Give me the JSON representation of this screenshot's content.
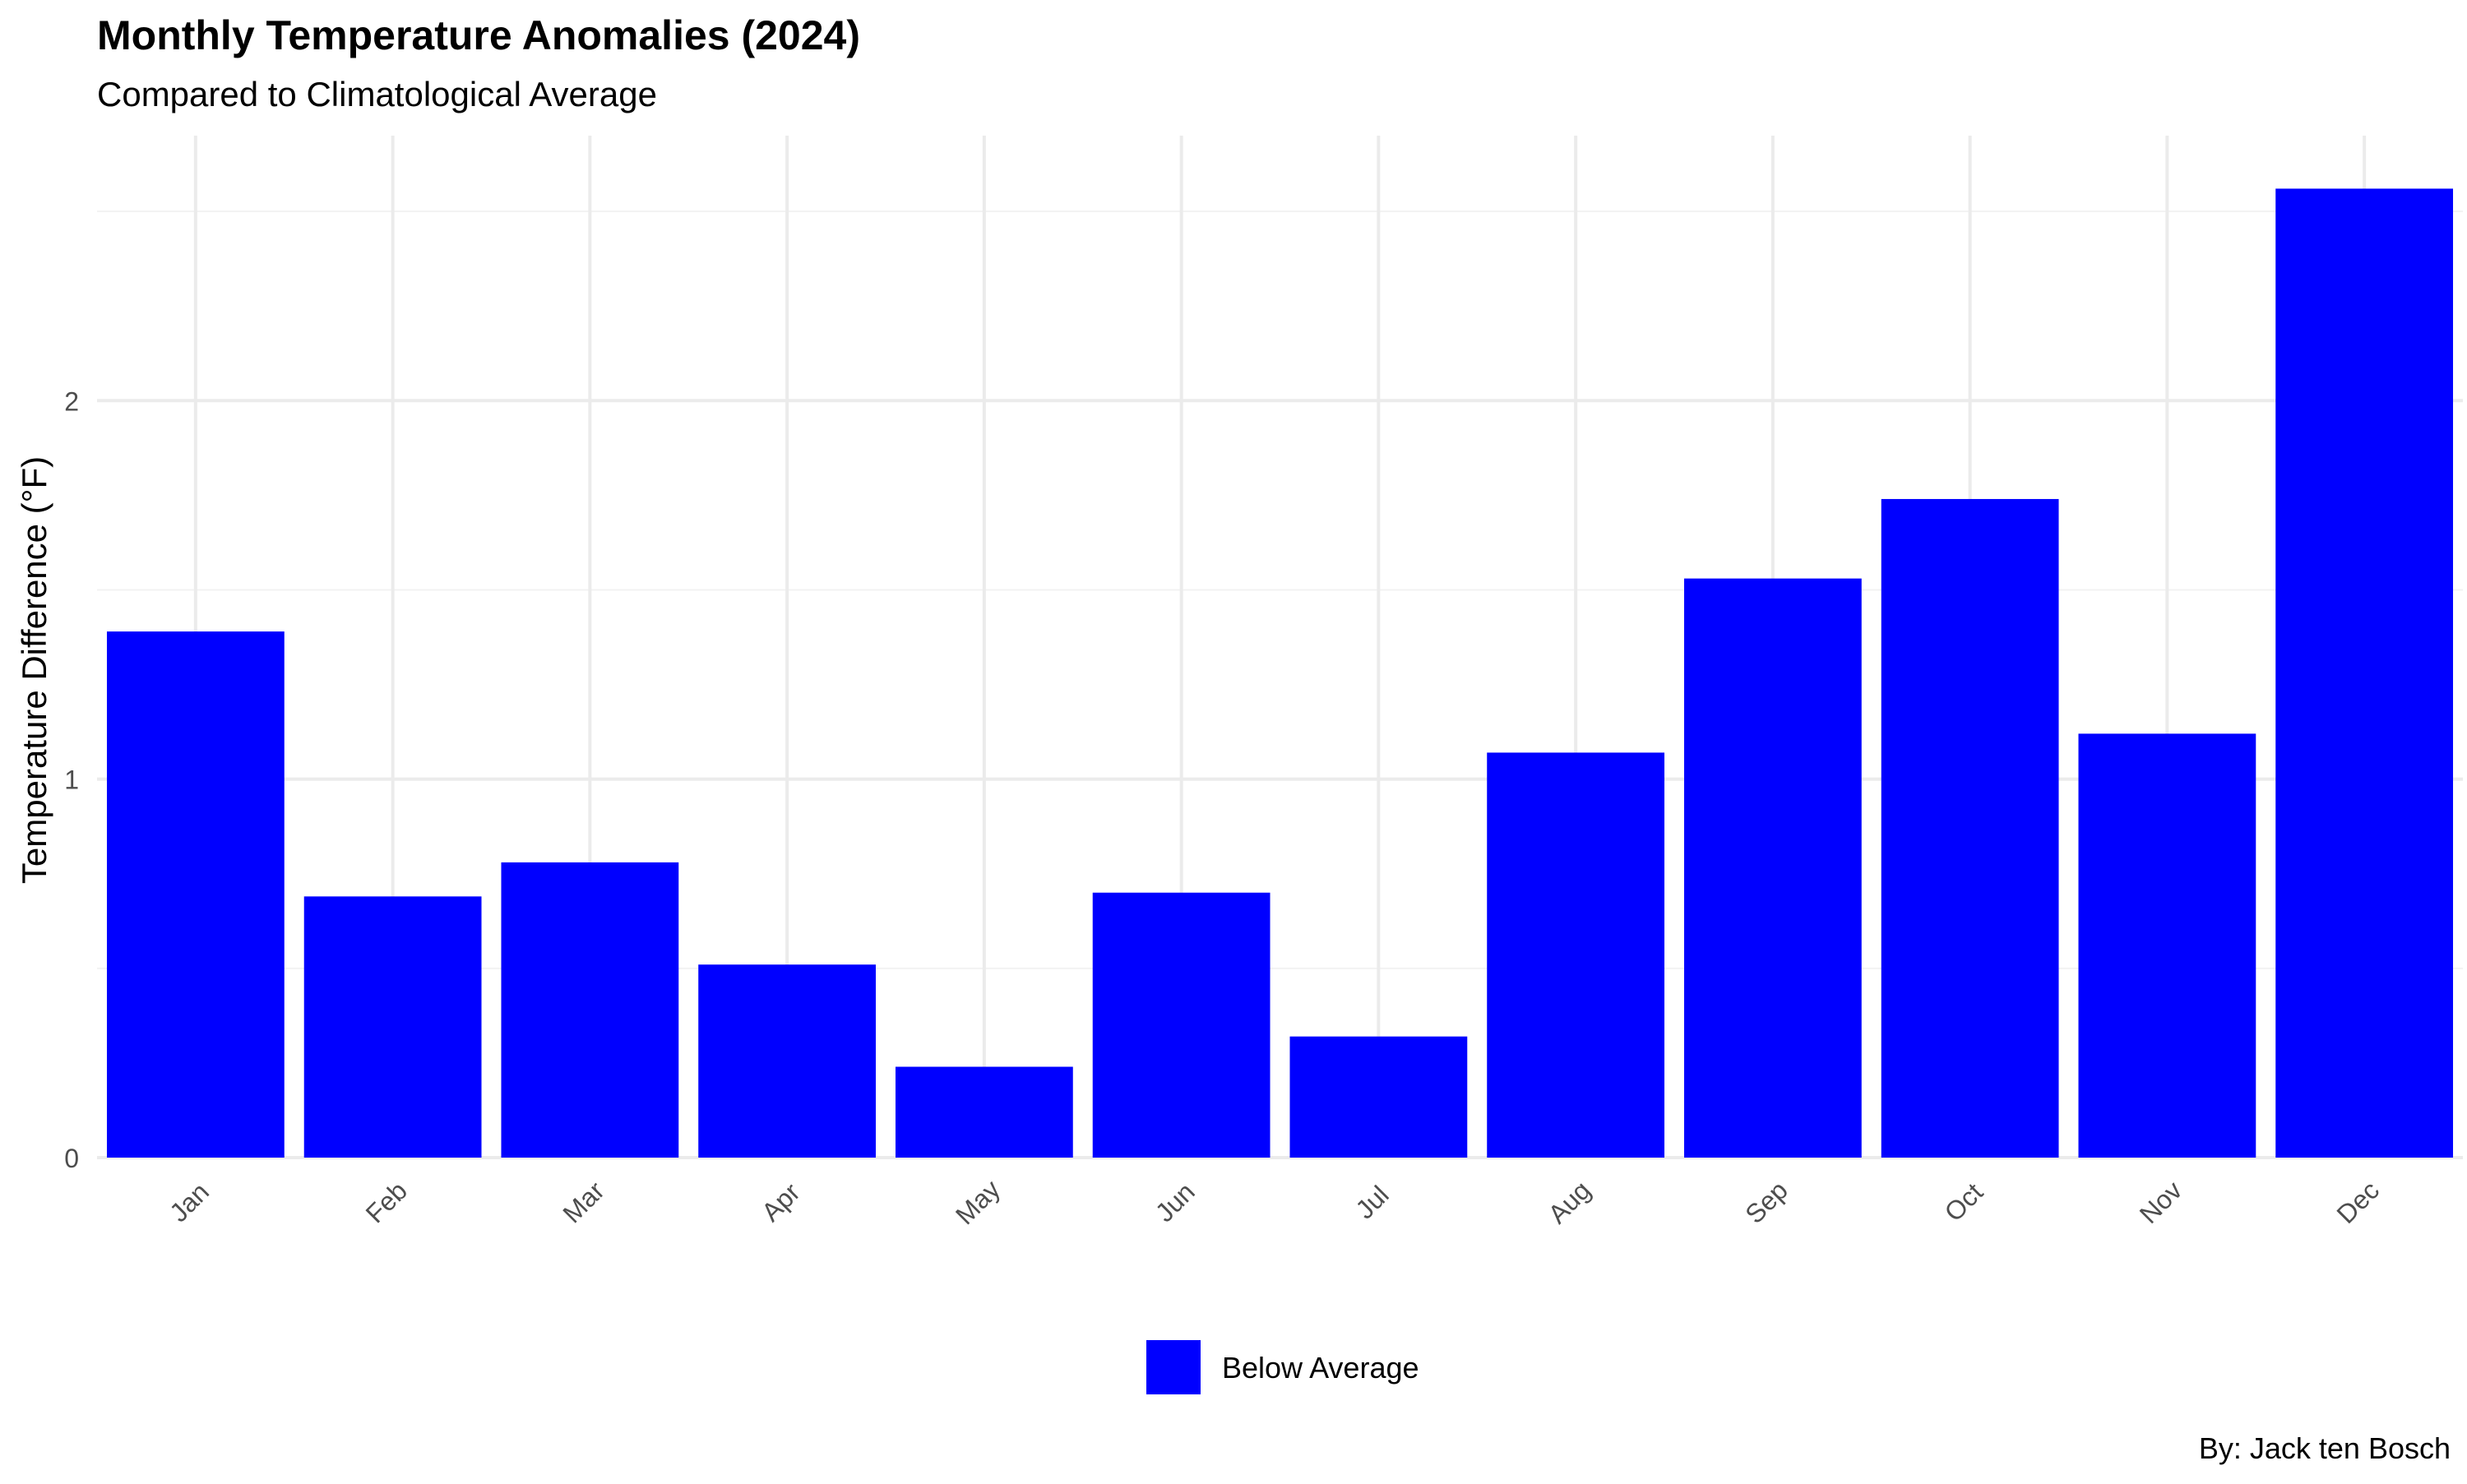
{
  "chart_data": {
    "type": "bar",
    "title": "Monthly Temperature Anomalies (2024)",
    "subtitle": "Compared to Climatological Average",
    "caption": "By: Jack ten Bosch",
    "xlabel": "",
    "ylabel": "Temperature Difference (°F)",
    "categories": [
      "Jan",
      "Feb",
      "Mar",
      "Apr",
      "May",
      "Jun",
      "Jul",
      "Aug",
      "Sep",
      "Oct",
      "Nov",
      "Dec"
    ],
    "series": [
      {
        "name": "Below Average",
        "color": "#0000FF",
        "values": [
          1.39,
          0.69,
          0.78,
          0.51,
          0.24,
          0.7,
          0.32,
          1.07,
          1.53,
          1.74,
          1.12,
          2.56
        ]
      }
    ],
    "yticks": [
      0,
      1,
      2
    ],
    "ylim": [
      0,
      2.7
    ],
    "grid": true,
    "legend_position": "bottom",
    "x_tick_rotation": -45
  }
}
